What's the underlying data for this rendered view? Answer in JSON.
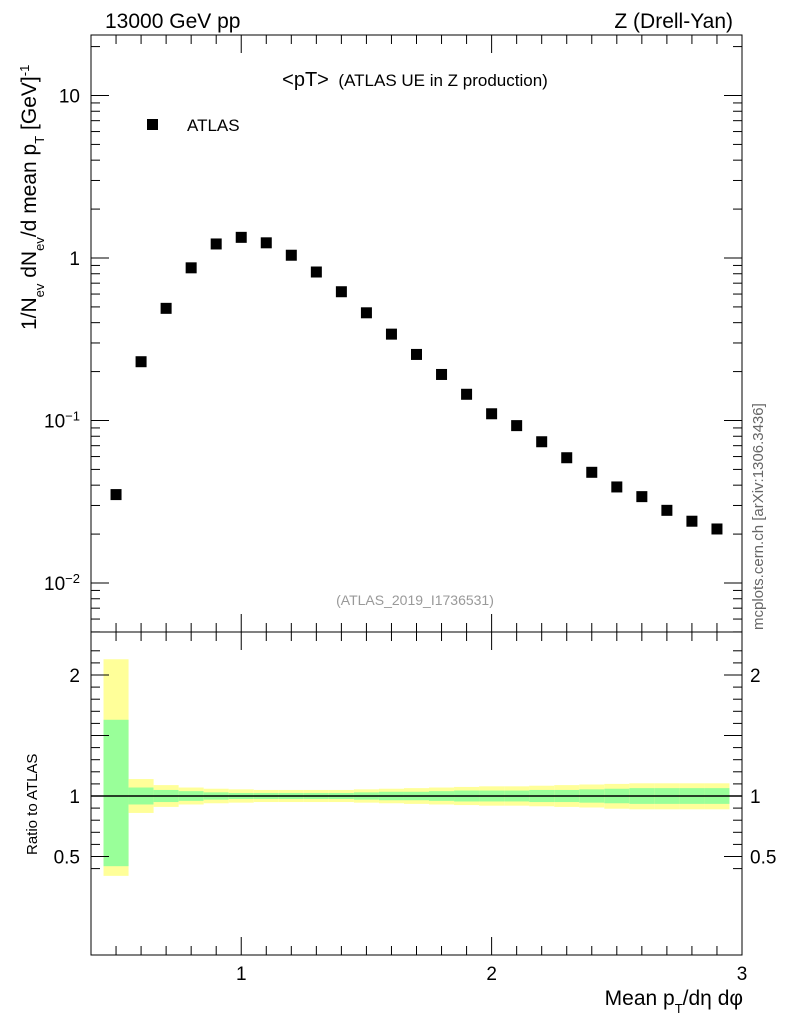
{
  "header": {
    "energy": "13000 GeV pp",
    "process": "Z (Drell-Yan)",
    "title_main": "<pT>",
    "title_sub": "(ATLAS UE in Z production)",
    "analysis_tag": "(ATLAS_2019_I1736531)",
    "side_credit": "mcplots.cern.ch [arXiv:1306.3436]"
  },
  "axes": {
    "y_top_label": "1/N_ev dN_ev/d mean p_T [GeV]^-1",
    "y_bottom_label": "Ratio to ATLAS",
    "x_label": "Mean p_T/dη dφ",
    "x_ticks": [
      "1",
      "2",
      "3"
    ],
    "top_y_ticks": [
      "10",
      "1",
      "10^-1",
      "10^-2"
    ],
    "bottom_y_ticks": [
      "2",
      "1",
      "0.5"
    ]
  },
  "colors": {
    "green_band": "#99ff99",
    "yellow_band": "#ffff99",
    "marker": "#000000"
  },
  "chart_data": {
    "type": "scatter",
    "legend": {
      "entries": [
        "ATLAS"
      ],
      "placement": "top-left"
    },
    "x_range": [
      0.4,
      3.0
    ],
    "y_top_range": [
      0.005,
      25
    ],
    "y_top_scale": "log",
    "y_bottom_range": [
      0.35,
      2.3
    ],
    "series": [
      {
        "name": "ATLAS",
        "x": [
          0.5,
          0.6,
          0.7,
          0.8,
          0.9,
          1.0,
          1.1,
          1.2,
          1.3,
          1.4,
          1.5,
          1.6,
          1.7,
          1.8,
          1.9,
          2.0,
          2.1,
          2.2,
          2.3,
          2.4,
          2.5,
          2.6,
          2.7,
          2.8,
          2.9
        ],
        "y": [
          0.035,
          0.23,
          0.49,
          0.87,
          1.22,
          1.34,
          1.24,
          1.04,
          0.82,
          0.62,
          0.46,
          0.34,
          0.255,
          0.192,
          0.145,
          0.11,
          0.093,
          0.074,
          0.059,
          0.048,
          0.039,
          0.034,
          0.028,
          0.024,
          0.0215
        ]
      }
    ],
    "ratio_bands": {
      "bins": [
        [
          0.45,
          0.55
        ],
        [
          0.55,
          0.65
        ],
        [
          0.65,
          0.75
        ],
        [
          0.75,
          0.85
        ],
        [
          0.85,
          0.95
        ],
        [
          0.95,
          1.05
        ],
        [
          1.05,
          1.15
        ],
        [
          1.15,
          1.25
        ],
        [
          1.25,
          1.35
        ],
        [
          1.35,
          1.45
        ],
        [
          1.45,
          1.55
        ],
        [
          1.55,
          1.65
        ],
        [
          1.65,
          1.75
        ],
        [
          1.75,
          1.85
        ],
        [
          1.85,
          1.95
        ],
        [
          1.95,
          2.05
        ],
        [
          2.05,
          2.15
        ],
        [
          2.15,
          2.25
        ],
        [
          2.25,
          2.35
        ],
        [
          2.35,
          2.45
        ],
        [
          2.45,
          2.55
        ],
        [
          2.55,
          2.65
        ],
        [
          2.65,
          2.75
        ],
        [
          2.75,
          2.85
        ],
        [
          2.85,
          2.95
        ]
      ],
      "green_low": [
        0.42,
        0.93,
        0.95,
        0.96,
        0.97,
        0.975,
        0.975,
        0.975,
        0.975,
        0.975,
        0.97,
        0.965,
        0.965,
        0.96,
        0.955,
        0.955,
        0.955,
        0.95,
        0.95,
        0.945,
        0.94,
        0.935,
        0.935,
        0.935,
        0.935
      ],
      "green_high": [
        1.63,
        1.07,
        1.05,
        1.04,
        1.03,
        1.025,
        1.025,
        1.025,
        1.025,
        1.025,
        1.03,
        1.035,
        1.035,
        1.04,
        1.045,
        1.045,
        1.045,
        1.05,
        1.05,
        1.055,
        1.06,
        1.065,
        1.065,
        1.065,
        1.065
      ],
      "yellow_low": [
        0.34,
        0.86,
        0.91,
        0.93,
        0.94,
        0.945,
        0.95,
        0.95,
        0.95,
        0.95,
        0.945,
        0.94,
        0.935,
        0.93,
        0.925,
        0.92,
        0.92,
        0.915,
        0.91,
        0.905,
        0.895,
        0.89,
        0.89,
        0.89,
        0.89
      ],
      "yellow_high": [
        2.13,
        1.14,
        1.09,
        1.07,
        1.06,
        1.055,
        1.05,
        1.05,
        1.05,
        1.05,
        1.055,
        1.06,
        1.065,
        1.07,
        1.075,
        1.08,
        1.08,
        1.085,
        1.09,
        1.095,
        1.1,
        1.105,
        1.105,
        1.105,
        1.105
      ],
      "reference_line": 1.0
    }
  }
}
